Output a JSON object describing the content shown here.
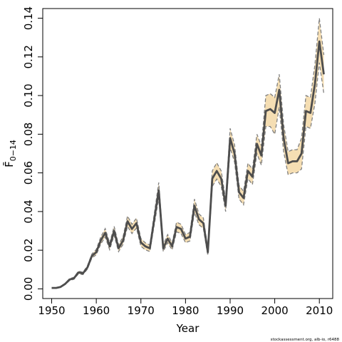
{
  "chart_data": {
    "type": "line",
    "title": "",
    "xlabel": "Year",
    "ylabel": "F̄",
    "ylabel_subscript": "0−14",
    "xlim": [
      1948,
      2013
    ],
    "ylim": [
      -0.005,
      0.145
    ],
    "xticks": [
      1950,
      1960,
      1970,
      1980,
      1990,
      2000,
      2010
    ],
    "yticks": [
      0.0,
      0.02,
      0.04,
      0.06,
      0.08,
      0.1,
      0.12,
      0.14
    ],
    "ytick_labels": [
      "0.00",
      "0.02",
      "0.04",
      "0.06",
      "0.08",
      "0.10",
      "0.12",
      "0.14"
    ],
    "grid": false,
    "colors": {
      "band": "#f5deb3",
      "line": "#4d4d4d",
      "dash": "#808080"
    },
    "x": [
      1950,
      1951,
      1952,
      1953,
      1954,
      1955,
      1956,
      1957,
      1958,
      1959,
      1960,
      1961,
      1962,
      1963,
      1964,
      1965,
      1966,
      1967,
      1968,
      1969,
      1970,
      1971,
      1972,
      1973,
      1974,
      1975,
      1976,
      1977,
      1978,
      1979,
      1980,
      1981,
      1982,
      1983,
      1984,
      1985,
      1986,
      1987,
      1988,
      1989,
      1990,
      1991,
      1992,
      1993,
      1994,
      1995,
      1996,
      1997,
      1998,
      1999,
      2000,
      2001,
      2002,
      2003,
      2004,
      2005,
      2006,
      2007,
      2008,
      2009,
      2010,
      2011
    ],
    "series": [
      {
        "values": [
          0.0005,
          0.0005,
          0.001,
          0.0025,
          0.0048,
          0.0055,
          0.0085,
          0.008,
          0.011,
          0.017,
          0.019,
          0.025,
          0.029,
          0.022,
          0.03,
          0.021,
          0.025,
          0.035,
          0.031,
          0.034,
          0.024,
          0.022,
          0.021,
          0.036,
          0.051,
          0.021,
          0.026,
          0.022,
          0.032,
          0.031,
          0.026,
          0.027,
          0.043,
          0.036,
          0.034,
          0.019,
          0.057,
          0.061,
          0.057,
          0.043,
          0.078,
          0.07,
          0.05,
          0.047,
          0.061,
          0.058,
          0.075,
          0.069,
          0.092,
          0.093,
          0.091,
          0.103,
          0.078,
          0.065,
          0.066,
          0.066,
          0.07,
          0.092,
          0.091,
          0.106,
          0.128,
          0.111
        ]
      },
      {
        "values": [
          0.0004,
          0.0004,
          0.0008,
          0.0022,
          0.0043,
          0.005,
          0.0078,
          0.0074,
          0.0102,
          0.016,
          0.0176,
          0.0232,
          0.0268,
          0.0203,
          0.0277,
          0.0193,
          0.023,
          0.0323,
          0.0286,
          0.0314,
          0.022,
          0.0202,
          0.0193,
          0.0332,
          0.047,
          0.0193,
          0.0239,
          0.0202,
          0.0295,
          0.0286,
          0.0239,
          0.0248,
          0.0396,
          0.0332,
          0.0313,
          0.0173,
          0.053,
          0.0568,
          0.053,
          0.04,
          0.073,
          0.0655,
          0.0465,
          0.0435,
          0.057,
          0.054,
          0.07,
          0.064,
          0.084,
          0.084,
          0.08,
          0.094,
          0.071,
          0.059,
          0.06,
          0.06,
          0.062,
          0.084,
          0.083,
          0.096,
          0.117,
          0.101
        ]
      },
      {
        "values": [
          0.0006,
          0.0006,
          0.0012,
          0.0028,
          0.0053,
          0.006,
          0.0092,
          0.0086,
          0.0118,
          0.018,
          0.0204,
          0.0268,
          0.0312,
          0.0237,
          0.0323,
          0.0227,
          0.027,
          0.0377,
          0.0334,
          0.0366,
          0.026,
          0.0238,
          0.0227,
          0.0388,
          0.055,
          0.0227,
          0.0281,
          0.0238,
          0.0345,
          0.0334,
          0.0281,
          0.0292,
          0.0464,
          0.0388,
          0.0367,
          0.0207,
          0.061,
          0.0652,
          0.061,
          0.046,
          0.083,
          0.0745,
          0.0535,
          0.0505,
          0.065,
          0.062,
          0.08,
          0.074,
          0.1,
          0.101,
          0.099,
          0.111,
          0.085,
          0.071,
          0.072,
          0.072,
          0.078,
          0.1,
          0.099,
          0.116,
          0.14,
          0.121
        ]
      }
    ],
    "watermark": "stockassessment.org, alb-io, r6488"
  }
}
